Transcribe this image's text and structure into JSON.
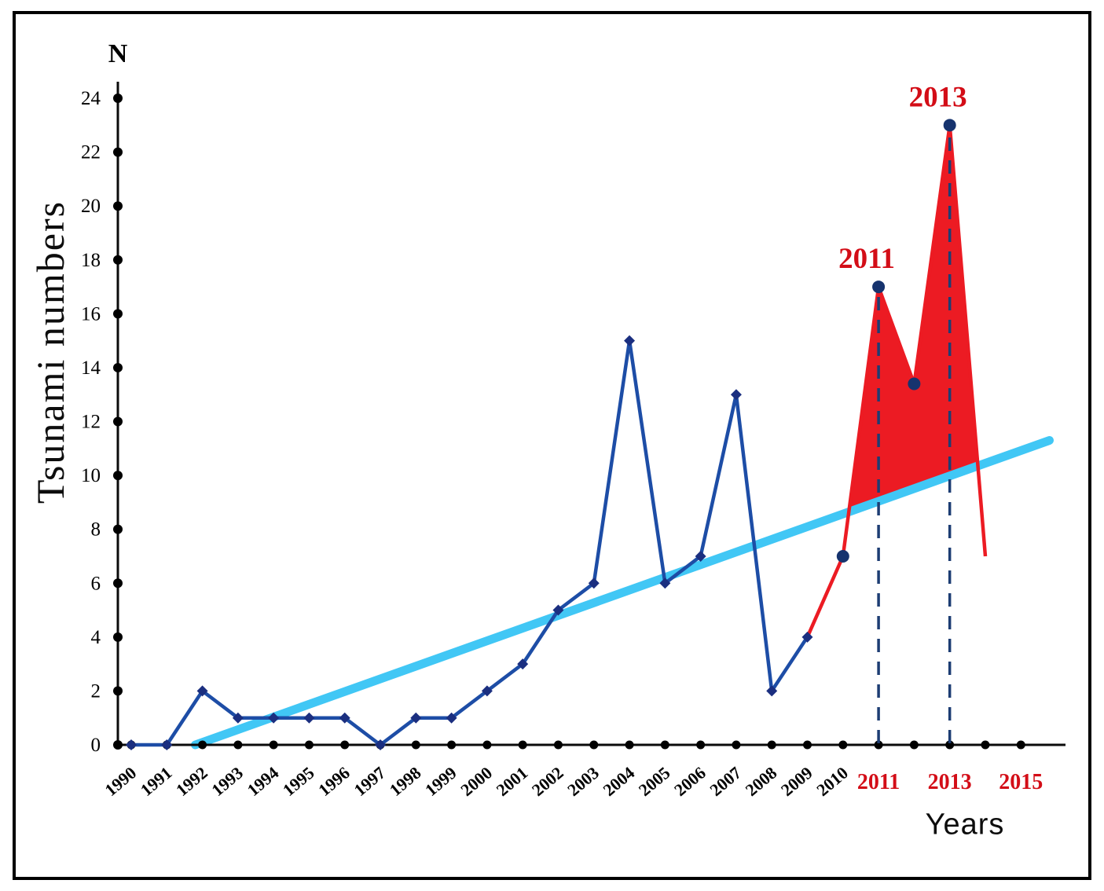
{
  "page": {
    "background": "#ffffff",
    "border_color": "#000000"
  },
  "chart_data": {
    "type": "line",
    "title": "",
    "xlabel": "Years",
    "ylabel": "Tsunami numbers",
    "y_axis_symbol": "N",
    "ylim": [
      0,
      24
    ],
    "ytick_step": 2,
    "ytick_labels": [
      "0",
      "2",
      "4",
      "6",
      "8",
      "10",
      "12",
      "14",
      "16",
      "18",
      "20",
      "22",
      "24"
    ],
    "x_years_domain": [
      1990,
      2015
    ],
    "xtick_labels_black": [
      "1990",
      "1991",
      "1992",
      "1993",
      "1994",
      "1995",
      "1996",
      "1997",
      "1998",
      "1999",
      "2000",
      "2001",
      "2002",
      "2003",
      "2004",
      "2005",
      "2006",
      "2007",
      "2008",
      "2009",
      "2010"
    ],
    "xtick_labels_red": [
      "2011",
      "2013",
      "2015"
    ],
    "red_tick_color": "#d30d17",
    "series": [
      {
        "name": "tsunami-numbers-observed",
        "color": "#1d4da6",
        "marker": "diamond",
        "marker_color": "#1b2f80",
        "x": [
          1990,
          1991,
          1992,
          1993,
          1994,
          1995,
          1996,
          1997,
          1998,
          1999,
          2000,
          2001,
          2002,
          2003,
          2004,
          2005,
          2006,
          2007,
          2008,
          2009
        ],
        "values": [
          0,
          0,
          2,
          1,
          1,
          1,
          1,
          0,
          1,
          1,
          2,
          3,
          5,
          6,
          15,
          6,
          7,
          13,
          2,
          4
        ]
      },
      {
        "name": "tsunami-numbers-recent",
        "color": "#ec1b23",
        "marker": "circle",
        "marker_color": "#16336e",
        "x": [
          2009,
          2010,
          2011,
          2012,
          2013,
          2014
        ],
        "values": [
          4,
          7,
          17,
          13.4,
          23,
          7
        ],
        "marker_points": {
          "x": [
            2010,
            2011,
            2012,
            2013
          ],
          "values": [
            7,
            17,
            13.4,
            23
          ]
        }
      },
      {
        "name": "linear-trend",
        "color": "#41c7f5",
        "x": [
          1991.8,
          2015.8
        ],
        "values": [
          0,
          11.3
        ]
      }
    ],
    "fill_between": {
      "upper": "tsunami-numbers-recent",
      "lower": "linear-trend",
      "color": "#ec1b23"
    },
    "dashed_vlines": [
      {
        "x": 2011,
        "y_top": 17,
        "color": "#1d3d73"
      },
      {
        "x": 2013,
        "y_top": 23,
        "color": "#1d3d73"
      }
    ],
    "annotations": [
      {
        "text": "2011",
        "x": 2011,
        "y": 17,
        "color": "#d30d17"
      },
      {
        "text": "2013",
        "x": 2013,
        "y": 23,
        "color": "#d30d17"
      }
    ]
  }
}
